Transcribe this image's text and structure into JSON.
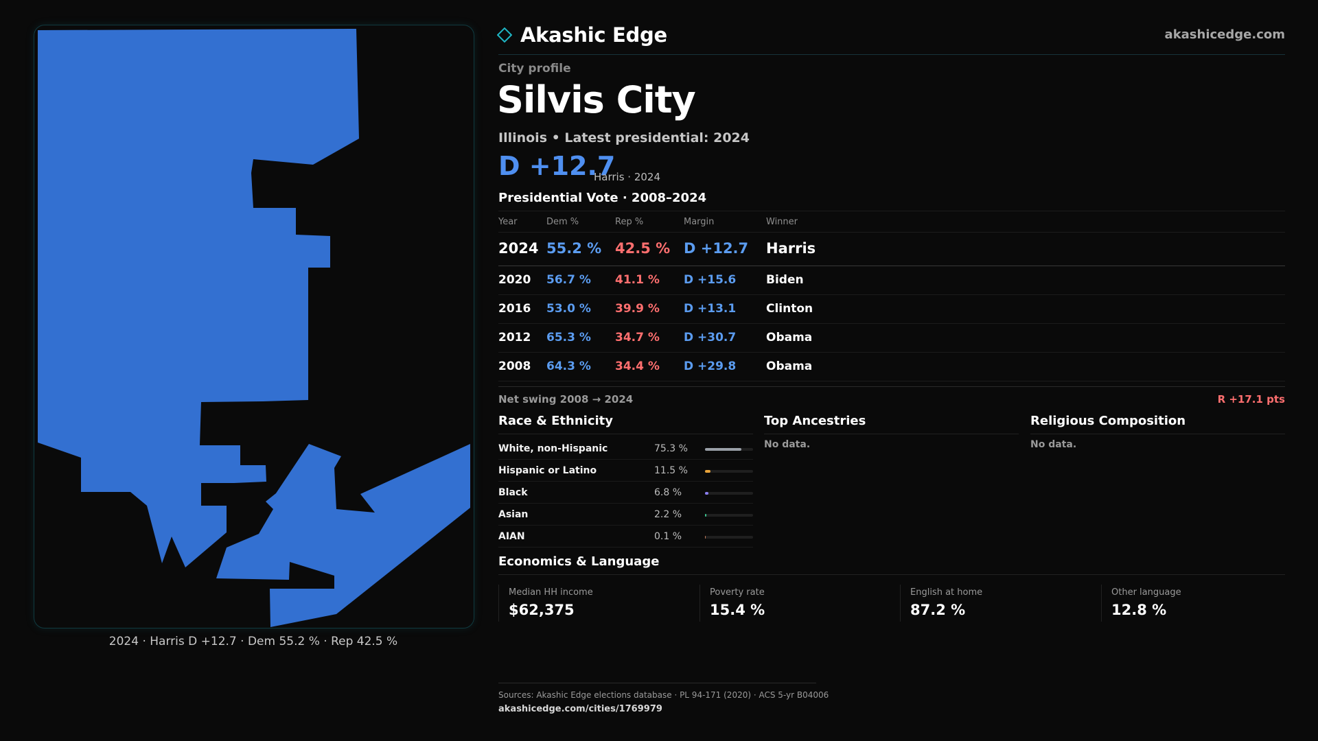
{
  "map": {
    "fill_color": "#3370d1",
    "caption": "2024 · Harris D +12.7 · Dem 55.2 % · Rep 42.5 %"
  },
  "header": {
    "brand": "Akashic Edge",
    "brand_icon": "diamond-icon",
    "site": "akashicedge.com"
  },
  "profile": {
    "kicker": "City profile",
    "title": "Silvis City",
    "subtitle": "Illinois • Latest presidential: 2024",
    "margin": "D +12.7",
    "margin_note": "Harris · 2024"
  },
  "vote": {
    "section_title": "Presidential Vote · 2008–2024",
    "columns": [
      "Year",
      "Dem %",
      "Rep %",
      "Margin",
      "Winner"
    ],
    "rows": [
      {
        "year": "2024",
        "dem": "55.2 %",
        "rep": "42.5 %",
        "margin": "D +12.7",
        "winner": "Harris"
      },
      {
        "year": "2020",
        "dem": "56.7 %",
        "rep": "41.1 %",
        "margin": "D +15.6",
        "winner": "Biden"
      },
      {
        "year": "2016",
        "dem": "53.0 %",
        "rep": "39.9 %",
        "margin": "D +13.1",
        "winner": "Clinton"
      },
      {
        "year": "2012",
        "dem": "65.3 %",
        "rep": "34.7 %",
        "margin": "D +30.7",
        "winner": "Obama"
      },
      {
        "year": "2008",
        "dem": "64.3 %",
        "rep": "34.4 %",
        "margin": "D +29.8",
        "winner": "Obama"
      }
    ],
    "swing_label": "Net swing 2008 → 2024",
    "swing_value": "R +17.1 pts"
  },
  "race": {
    "title": "Race & Ethnicity",
    "rows": [
      {
        "label": "White, non-Hispanic",
        "value": "75.3 %",
        "share": 0.753,
        "color": "#9aa0a8"
      },
      {
        "label": "Hispanic or Latino",
        "value": "11.5 %",
        "share": 0.115,
        "color": "#e8a33a"
      },
      {
        "label": "Black",
        "value": "6.8 %",
        "share": 0.068,
        "color": "#8a7ef0"
      },
      {
        "label": "Asian",
        "value": "2.2 %",
        "share": 0.022,
        "color": "#3dc28f"
      },
      {
        "label": "AIAN",
        "value": "0.1 %",
        "share": 0.001,
        "color": "#c07a5a"
      }
    ]
  },
  "ancestries": {
    "title": "Top Ancestries",
    "empty": "No data."
  },
  "religion": {
    "title": "Religious Composition",
    "empty": "No data."
  },
  "econ": {
    "title": "Economics & Language",
    "stats": [
      {
        "label": "Median HH income",
        "value": "$62,375"
      },
      {
        "label": "Poverty rate",
        "value": "15.4 %"
      },
      {
        "label": "English at home",
        "value": "87.2 %"
      },
      {
        "label": "Other language",
        "value": "12.8 %"
      }
    ]
  },
  "footer": {
    "source": "Sources: Akashic Edge elections database · PL 94-171 (2020) · ACS 5-yr B04006",
    "url": "akashicedge.com/cities/1769979"
  }
}
